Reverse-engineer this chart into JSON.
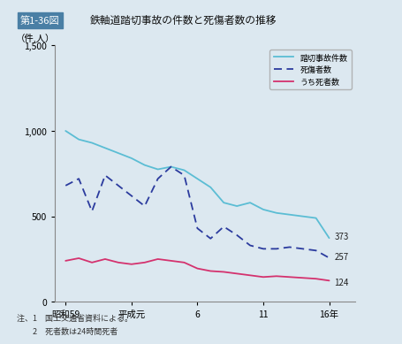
{
  "header_label": "第1-36図",
  "title": "鉄軸道踏切事故の件数と死傷者数の推移",
  "ylabel": "（件,人）",
  "background_color": "#dce8f0",
  "header_bg": "#4a7fa5",
  "x_tick_labels": [
    "昭和59",
    "平成元",
    "6",
    "11",
    "16年"
  ],
  "x_tick_positions": [
    0,
    5,
    10,
    15,
    20
  ],
  "ylim": [
    0,
    1500
  ],
  "yticks": [
    0,
    500,
    1000,
    1500
  ],
  "series1_label": "踏切事故件数",
  "series1_color": "#5bbdd4",
  "series1_data": [
    1000,
    950,
    930,
    900,
    870,
    840,
    800,
    775,
    790,
    770,
    720,
    670,
    580,
    560,
    580,
    540,
    520,
    510,
    500,
    490,
    373
  ],
  "series2_label": "死傷者数",
  "series2_color": "#2b3b9e",
  "series2_data": [
    680,
    720,
    530,
    740,
    680,
    620,
    560,
    720,
    790,
    740,
    430,
    370,
    440,
    390,
    330,
    310,
    310,
    320,
    310,
    300,
    257
  ],
  "series3_label": "うち死者数",
  "series3_color": "#d4326e",
  "series3_data": [
    240,
    255,
    230,
    250,
    230,
    220,
    230,
    250,
    240,
    230,
    195,
    180,
    175,
    165,
    155,
    145,
    150,
    145,
    140,
    135,
    124
  ],
  "end_labels": [
    "373",
    "257",
    "124"
  ],
  "note1": "注、1　国土交通省資料による。",
  "note2": "　　2　死者数は24時間死者"
}
